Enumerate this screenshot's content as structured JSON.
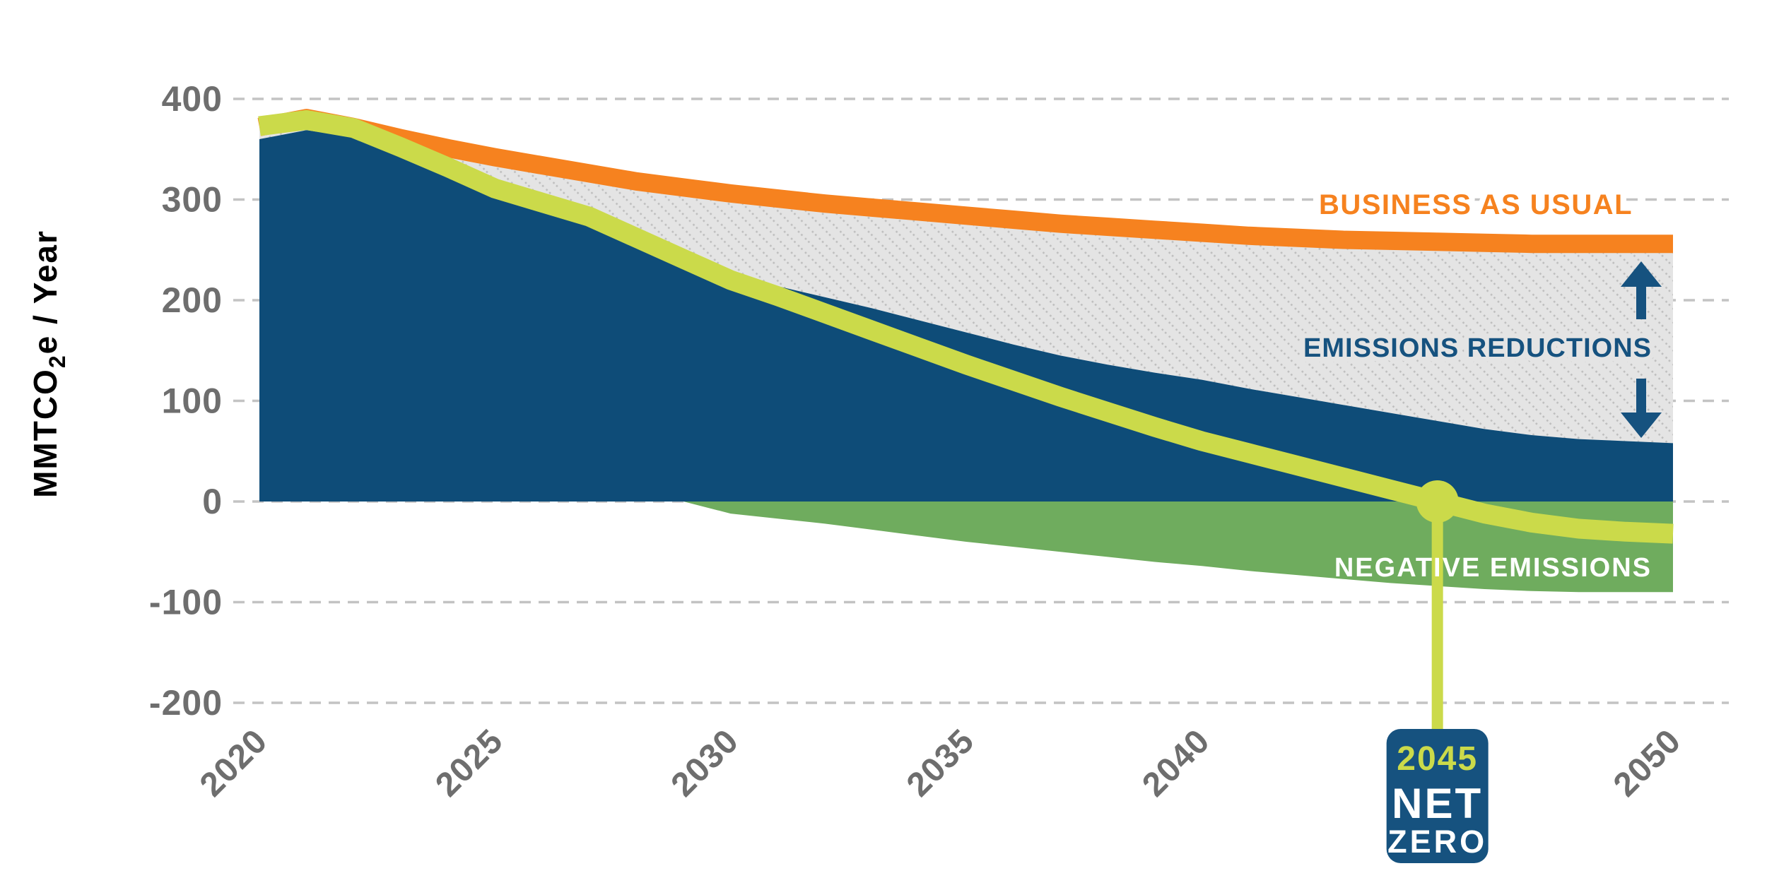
{
  "figure": {
    "background": "#FFFFFF"
  },
  "colors": {
    "bau_orange": "#F6821F",
    "gross_blue": "#0E4C78",
    "accent_navy": "#16527F",
    "net_lime": "#CBDA4A",
    "negative_green": "#6FAC5E",
    "hatch_bg": "#E4E4E4",
    "hatch_dot": "#BDBDBD",
    "grid_gray": "#C3C3C3",
    "tick_gray": "#6E6E6E",
    "badge_bg": "#16527F",
    "white": "#FFFFFF"
  },
  "axis": {
    "y_title_prefix": "MMTCO",
    "y_title_sub": "2",
    "y_title_suffix": "e / Year"
  },
  "labels": {
    "business_as_usual": "BUSINESS AS USUAL",
    "emissions_reductions": "EMISSIONS REDUCTIONS",
    "negative_emissions": "NEGATIVE EMISSIONS"
  },
  "badge": {
    "year": "2045",
    "line1": "NET",
    "line2": "ZERO"
  },
  "chart_data": {
    "type": "area",
    "ylabel": "MMTCO2e / Year",
    "grid": "dashed horizontal gridlines",
    "legend_position": "labels annotated on chart (right side)",
    "x": {
      "min": 2020,
      "max": 2050,
      "ticks": [
        2020,
        2025,
        2030,
        2035,
        2040,
        2050
      ]
    },
    "y": {
      "min": -200,
      "max": 400,
      "ticks": [
        400,
        300,
        200,
        100,
        0,
        -100,
        -200
      ]
    },
    "annotations": {
      "net_zero_year": 2045,
      "net_zero_value": 0
    },
    "series": [
      {
        "name": "business_as_usual",
        "label": "BUSINESS AS USUAL",
        "type": "line",
        "color": "#F6821F",
        "points": [
          [
            2020,
            372
          ],
          [
            2021,
            381
          ],
          [
            2022,
            372
          ],
          [
            2023,
            361
          ],
          [
            2024,
            351
          ],
          [
            2025,
            342
          ],
          [
            2026,
            334
          ],
          [
            2027,
            326
          ],
          [
            2028,
            318
          ],
          [
            2029,
            312
          ],
          [
            2030,
            306
          ],
          [
            2031,
            301
          ],
          [
            2032,
            296
          ],
          [
            2033,
            292
          ],
          [
            2034,
            288
          ],
          [
            2035,
            284
          ],
          [
            2036,
            280
          ],
          [
            2037,
            276
          ],
          [
            2038,
            273
          ],
          [
            2039,
            270
          ],
          [
            2040,
            267
          ],
          [
            2041,
            264
          ],
          [
            2042,
            262
          ],
          [
            2043,
            260
          ],
          [
            2044,
            259
          ],
          [
            2045,
            258
          ],
          [
            2046,
            257
          ],
          [
            2047,
            256
          ],
          [
            2048,
            256
          ],
          [
            2049,
            256
          ],
          [
            2050,
            256
          ]
        ]
      },
      {
        "name": "gross_emissions",
        "label": "Gross emissions (blue area, baseline 0)",
        "type": "area",
        "color": "#0E4C78",
        "baseline": 0,
        "points": [
          [
            2020,
            360
          ],
          [
            2021,
            369
          ],
          [
            2022,
            362
          ],
          [
            2023,
            344
          ],
          [
            2024,
            324
          ],
          [
            2025,
            303
          ],
          [
            2026,
            291
          ],
          [
            2027,
            280
          ],
          [
            2028,
            261
          ],
          [
            2029,
            241
          ],
          [
            2030,
            224
          ],
          [
            2031,
            214
          ],
          [
            2032,
            203
          ],
          [
            2033,
            192
          ],
          [
            2034,
            180
          ],
          [
            2035,
            168
          ],
          [
            2036,
            156
          ],
          [
            2037,
            145
          ],
          [
            2038,
            136
          ],
          [
            2039,
            128
          ],
          [
            2040,
            121
          ],
          [
            2041,
            112
          ],
          [
            2042,
            104
          ],
          [
            2043,
            96
          ],
          [
            2044,
            88
          ],
          [
            2045,
            80
          ],
          [
            2046,
            72
          ],
          [
            2047,
            66
          ],
          [
            2048,
            62
          ],
          [
            2049,
            60
          ],
          [
            2050,
            58
          ]
        ]
      },
      {
        "name": "emissions_reductions",
        "label": "EMISSIONS REDUCTIONS",
        "type": "area-between",
        "between": [
          "business_as_usual",
          "gross_emissions"
        ],
        "fill": "gray diagonal dotted hatch"
      },
      {
        "name": "negative_emissions",
        "label": "NEGATIVE EMISSIONS",
        "type": "area",
        "color": "#6FAC5E",
        "top": 0,
        "points": [
          [
            2029,
            0
          ],
          [
            2030,
            -12
          ],
          [
            2031,
            -17
          ],
          [
            2032,
            -22
          ],
          [
            2033,
            -28
          ],
          [
            2034,
            -34
          ],
          [
            2035,
            -40
          ],
          [
            2036,
            -45
          ],
          [
            2037,
            -50
          ],
          [
            2038,
            -55
          ],
          [
            2039,
            -60
          ],
          [
            2040,
            -64
          ],
          [
            2041,
            -69
          ],
          [
            2042,
            -73
          ],
          [
            2043,
            -77
          ],
          [
            2044,
            -81
          ],
          [
            2045,
            -84
          ],
          [
            2046,
            -87
          ],
          [
            2047,
            -89
          ],
          [
            2048,
            -90
          ],
          [
            2049,
            -90
          ],
          [
            2050,
            -90
          ]
        ]
      },
      {
        "name": "net_emissions",
        "label": "Net emissions (lime line, crosses zero in 2045)",
        "type": "line",
        "color": "#CBDA4A",
        "points": [
          [
            2020,
            373
          ],
          [
            2021,
            379
          ],
          [
            2022,
            371
          ],
          [
            2023,
            352
          ],
          [
            2024,
            332
          ],
          [
            2025,
            311
          ],
          [
            2026,
            297
          ],
          [
            2027,
            283
          ],
          [
            2028,
            262
          ],
          [
            2029,
            241
          ],
          [
            2030,
            220
          ],
          [
            2031,
            204
          ],
          [
            2032,
            187
          ],
          [
            2033,
            170
          ],
          [
            2034,
            153
          ],
          [
            2035,
            136
          ],
          [
            2036,
            120
          ],
          [
            2037,
            104
          ],
          [
            2038,
            89
          ],
          [
            2039,
            74
          ],
          [
            2040,
            60
          ],
          [
            2041,
            48
          ],
          [
            2042,
            36
          ],
          [
            2043,
            24
          ],
          [
            2044,
            12
          ],
          [
            2045,
            0
          ],
          [
            2046,
            -12
          ],
          [
            2047,
            -21
          ],
          [
            2048,
            -27
          ],
          [
            2049,
            -30
          ],
          [
            2050,
            -32
          ]
        ]
      }
    ]
  }
}
